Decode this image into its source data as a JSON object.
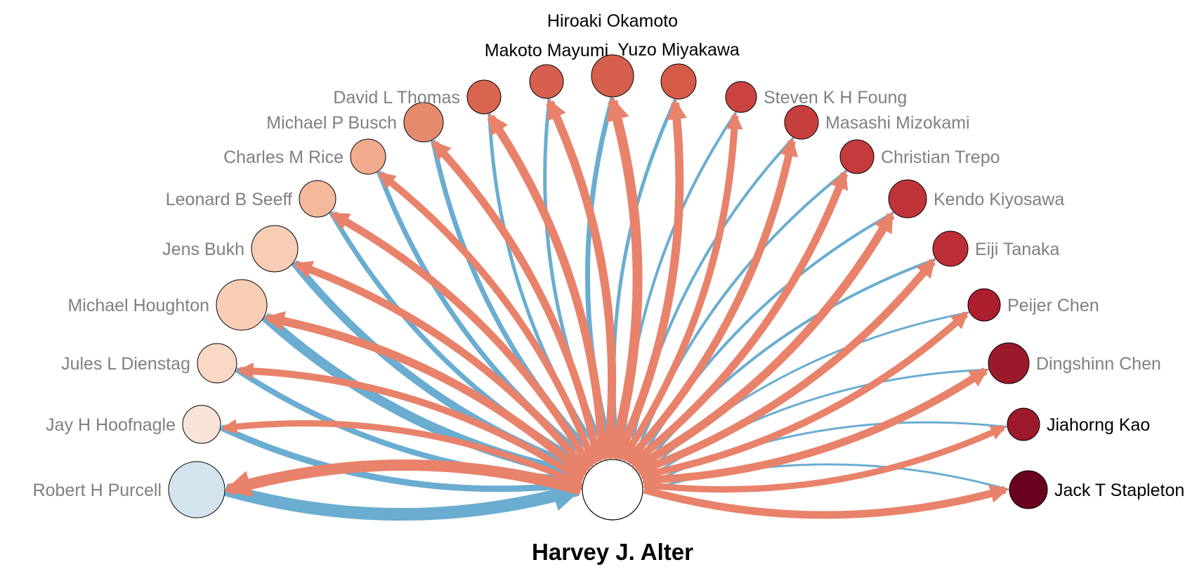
{
  "center": {
    "name": "Harvey J. Alter"
  },
  "colors": {
    "outgoing": "#e8826a",
    "incoming": "#6aadd1",
    "node_stroke": "#000000",
    "label_gray": "#808080",
    "label_black": "#000000"
  },
  "nodes": [
    {
      "name": "Robert H Purcell",
      "fill": "#d3e4ef",
      "size": 40,
      "label_color": "gray",
      "out_weight": 16,
      "in_weight": 18
    },
    {
      "name": "Jay H Hoofnagle",
      "fill": "#f9e3d8",
      "size": 27,
      "label_color": "gray",
      "out_weight": 9,
      "in_weight": 9
    },
    {
      "name": "Jules L Dienstag",
      "fill": "#f9d8c5",
      "size": 28,
      "label_color": "gray",
      "out_weight": 10,
      "in_weight": 8
    },
    {
      "name": "Michael Houghton",
      "fill": "#f7cdb5",
      "size": 36,
      "label_color": "gray",
      "out_weight": 12,
      "in_weight": 14
    },
    {
      "name": "Jens Bukh",
      "fill": "#f7cdb5",
      "size": 33,
      "label_color": "gray",
      "out_weight": 11,
      "in_weight": 11
    },
    {
      "name": "Leonard B Seeff",
      "fill": "#f4b89c",
      "size": 26,
      "label_color": "gray",
      "out_weight": 11,
      "in_weight": 7
    },
    {
      "name": "Charles M Rice",
      "fill": "#f2ab8e",
      "size": 25,
      "label_color": "gray",
      "out_weight": 10,
      "in_weight": 7
    },
    {
      "name": "Michael P Busch",
      "fill": "#e68a6d",
      "size": 28,
      "label_color": "gray",
      "out_weight": 11,
      "in_weight": 7
    },
    {
      "name": "David L Thomas",
      "fill": "#d96550",
      "size": 24,
      "label_color": "gray",
      "out_weight": 12,
      "in_weight": 5
    },
    {
      "name": "Makoto Mayumi",
      "fill": "#d6604d",
      "size": 24,
      "label_color": "black",
      "out_weight": 12,
      "in_weight": 5
    },
    {
      "name": "Hiroaki Okamoto",
      "fill": "#d6604d",
      "size": 30,
      "label_color": "black",
      "out_weight": 14,
      "in_weight": 7
    },
    {
      "name": "Yuzo Miyakawa",
      "fill": "#d55a48",
      "size": 25,
      "label_color": "black",
      "out_weight": 12,
      "in_weight": 5
    },
    {
      "name": "Steven K H Foung",
      "fill": "#c94440",
      "size": 22,
      "label_color": "gray",
      "out_weight": 10,
      "in_weight": 4
    },
    {
      "name": "Masashi Mizokami",
      "fill": "#c7403e",
      "size": 24,
      "label_color": "gray",
      "out_weight": 11,
      "in_weight": 4
    },
    {
      "name": "Christian Trepo",
      "fill": "#c43b3c",
      "size": 24,
      "label_color": "gray",
      "out_weight": 11,
      "in_weight": 4
    },
    {
      "name": "Kendo Kiyosawa",
      "fill": "#c03439",
      "size": 27,
      "label_color": "gray",
      "out_weight": 12,
      "in_weight": 4
    },
    {
      "name": "Eiji Tanaka",
      "fill": "#bd2f38",
      "size": 25,
      "label_color": "gray",
      "out_weight": 11,
      "in_weight": 4
    },
    {
      "name": "Peijer Chen",
      "fill": "#ad1e2f",
      "size": 23,
      "label_color": "gray",
      "out_weight": 10,
      "in_weight": 3
    },
    {
      "name": "Dingshinn Chen",
      "fill": "#9a1a2c",
      "size": 29,
      "label_color": "gray",
      "out_weight": 11,
      "in_weight": 3
    },
    {
      "name": "Jiahorng Kao",
      "fill": "#9d1a2c",
      "size": 23,
      "label_color": "black",
      "out_weight": 9,
      "in_weight": 3
    },
    {
      "name": "Jack T Stapleton",
      "fill": "#6a0020",
      "size": 27,
      "label_color": "black",
      "out_weight": 11,
      "in_weight": 3
    }
  ]
}
